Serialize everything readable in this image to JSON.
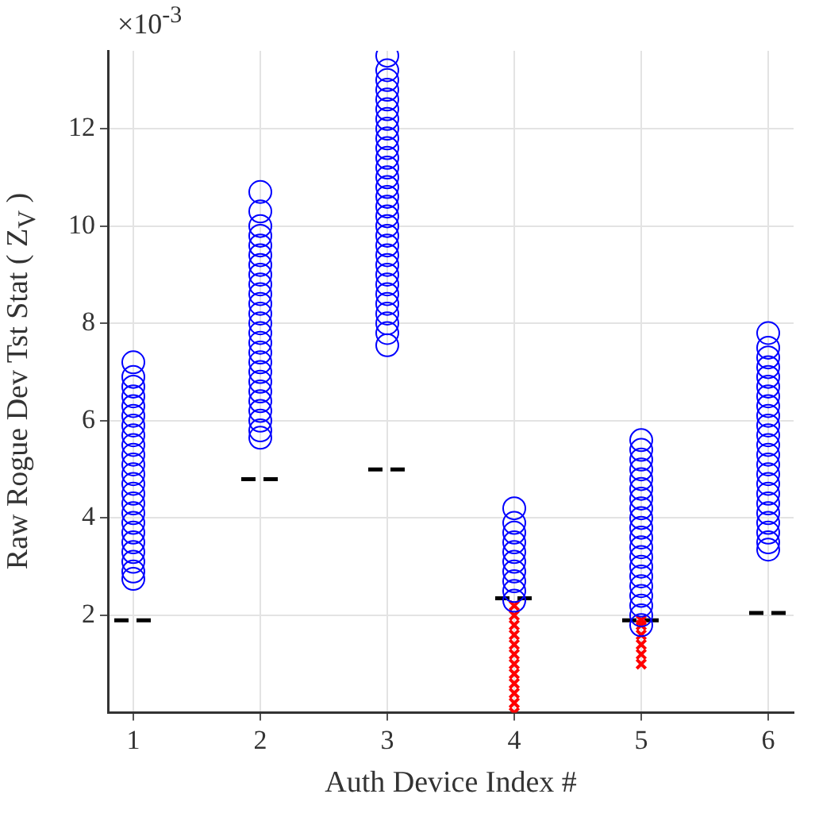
{
  "chart_data": {
    "type": "scatter",
    "xlabel": "Auth Device Index #",
    "ylabel": "Raw Rogue Dev Tst Stat ( Z$_{V}$ )",
    "annotations": [
      "×10$^{-3}$"
    ],
    "xlim": [
      0.8,
      6.2
    ],
    "xticks": [
      1,
      2,
      3,
      4,
      5,
      6
    ],
    "ylim": [
      0,
      13.6
    ],
    "yticks": [
      2,
      4,
      6,
      8,
      10,
      12
    ],
    "grid": true,
    "series": [
      {
        "type": "scatter",
        "marker": "circle",
        "color": "#0000ff",
        "x": [
          1,
          1,
          1,
          1,
          1,
          1,
          1,
          1,
          1,
          1,
          1,
          1,
          1,
          1,
          1,
          1,
          1,
          1,
          1,
          1,
          1,
          1,
          1,
          2,
          2,
          2,
          2,
          2,
          2,
          2,
          2,
          2,
          2,
          2,
          2,
          2,
          2,
          2,
          2,
          2,
          2,
          2,
          2,
          2,
          2,
          2,
          2,
          2,
          3,
          3,
          3,
          3,
          3,
          3,
          3,
          3,
          3,
          3,
          3,
          3,
          3,
          3,
          3,
          3,
          3,
          3,
          3,
          3,
          3,
          3,
          3,
          3,
          3,
          3,
          3,
          3,
          3,
          3,
          4,
          4,
          4,
          4,
          4,
          4,
          4,
          4,
          4,
          4,
          5,
          5,
          5,
          5,
          5,
          5,
          5,
          5,
          5,
          5,
          5,
          5,
          5,
          5,
          5,
          5,
          5,
          5,
          5,
          5,
          6,
          6,
          6,
          6,
          6,
          6,
          6,
          6,
          6,
          6,
          6,
          6,
          6,
          6,
          6,
          6,
          6,
          6,
          6,
          6,
          6,
          6,
          6
        ],
        "values": [
          2.75,
          2.9,
          3.1,
          3.3,
          3.5,
          3.7,
          3.9,
          4.1,
          4.3,
          4.5,
          4.7,
          4.9,
          5.1,
          5.3,
          5.5,
          5.7,
          5.9,
          6.1,
          6.3,
          6.5,
          6.7,
          6.9,
          7.2,
          5.65,
          5.8,
          6.0,
          6.2,
          6.4,
          6.6,
          6.8,
          7.0,
          7.2,
          7.4,
          7.6,
          7.8,
          8.0,
          8.2,
          8.4,
          8.6,
          8.8,
          9.0,
          9.2,
          9.4,
          9.6,
          9.8,
          10.0,
          10.3,
          10.7,
          7.55,
          7.8,
          8.0,
          8.2,
          8.4,
          8.6,
          8.8,
          9.0,
          9.2,
          9.4,
          9.6,
          9.8,
          10.0,
          10.2,
          10.4,
          10.6,
          10.8,
          11.0,
          11.2,
          11.4,
          11.6,
          11.8,
          12.0,
          12.2,
          12.4,
          12.6,
          12.8,
          13.0,
          13.2,
          13.5,
          2.3,
          2.5,
          2.7,
          2.9,
          3.1,
          3.3,
          3.5,
          3.7,
          3.9,
          4.2,
          1.8,
          2.0,
          2.2,
          2.4,
          2.6,
          2.8,
          3.0,
          3.2,
          3.4,
          3.6,
          3.8,
          4.0,
          4.2,
          4.4,
          4.6,
          4.8,
          5.0,
          5.2,
          5.4,
          5.6,
          3.35,
          3.5,
          3.7,
          3.9,
          4.1,
          4.3,
          4.5,
          4.7,
          4.9,
          5.1,
          5.3,
          5.5,
          5.7,
          5.9,
          6.1,
          6.3,
          6.5,
          6.7,
          6.9,
          7.1,
          7.3,
          7.5,
          7.8
        ]
      },
      {
        "type": "scatter",
        "marker": "cross",
        "color": "#ff0000",
        "x": [
          4,
          4,
          4,
          4,
          4,
          4,
          4,
          4,
          4,
          4,
          4,
          4,
          5,
          5,
          5,
          5,
          5,
          5
        ],
        "values": [
          0.0,
          0.2,
          0.4,
          0.6,
          0.8,
          1.0,
          1.2,
          1.4,
          1.6,
          1.8,
          2.0,
          2.2,
          1.0,
          1.2,
          1.4,
          1.6,
          1.8,
          1.9
        ]
      },
      {
        "type": "line",
        "line_style": "dashed",
        "color": "#000000",
        "x": [
          0.85,
          1.15
        ],
        "values": [
          1.9,
          1.9
        ]
      },
      {
        "type": "line",
        "line_style": "dashed",
        "color": "#000000",
        "x": [
          1.85,
          2.15
        ],
        "values": [
          4.8,
          4.8
        ]
      },
      {
        "type": "line",
        "line_style": "dashed",
        "color": "#000000",
        "x": [
          2.85,
          3.15
        ],
        "values": [
          5.0,
          5.0
        ]
      },
      {
        "type": "line",
        "line_style": "dashed",
        "color": "#000000",
        "x": [
          3.85,
          4.15
        ],
        "values": [
          2.35,
          2.35
        ]
      },
      {
        "type": "line",
        "line_style": "dashed",
        "color": "#000000",
        "x": [
          4.85,
          5.15
        ],
        "values": [
          1.9,
          1.9
        ]
      },
      {
        "type": "line",
        "line_style": "dashed",
        "color": "#000000",
        "x": [
          5.85,
          6.15
        ],
        "values": [
          2.05,
          2.05
        ]
      }
    ]
  }
}
